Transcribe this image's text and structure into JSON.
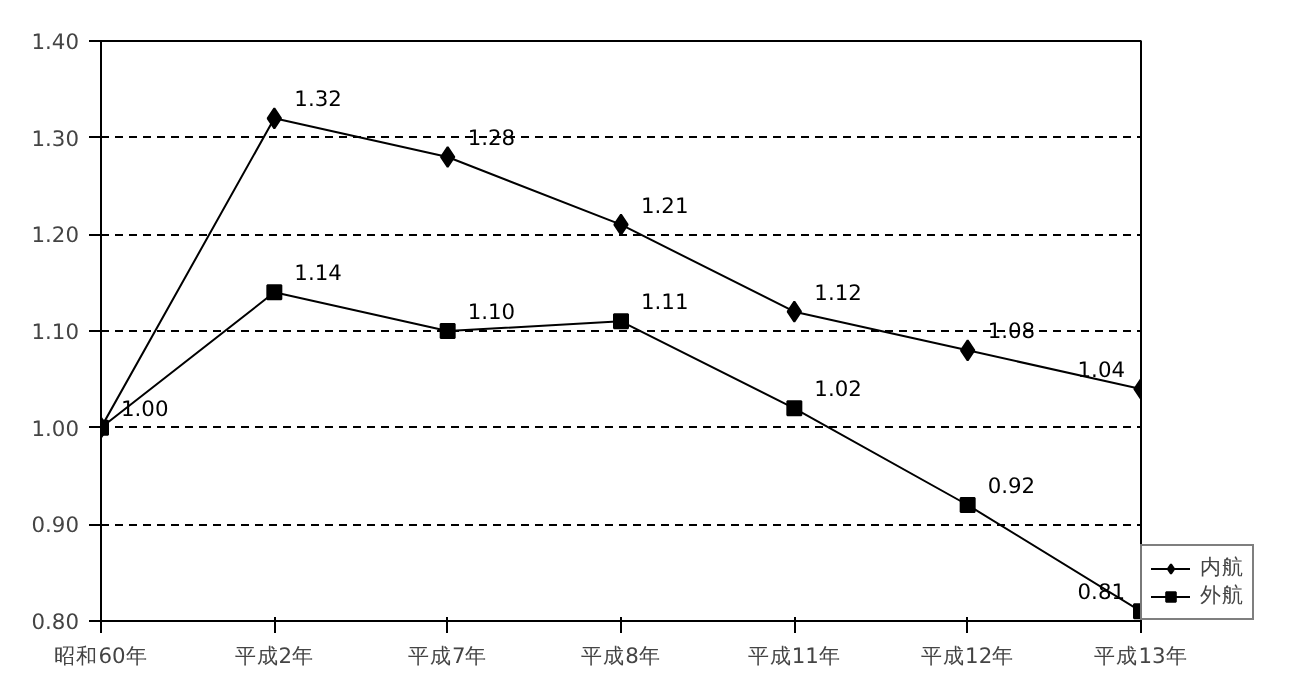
{
  "chart_data": {
    "type": "line",
    "categories": [
      "昭和60年",
      "平成2年",
      "平成7年",
      "平成8年",
      "平成11年",
      "平成12年",
      "平成13年"
    ],
    "series": [
      {
        "name": "内航",
        "color": "#000000",
        "marker": "diamond",
        "values": [
          1.0,
          1.32,
          1.28,
          1.21,
          1.12,
          1.08,
          1.04
        ],
        "value_labels": [
          null,
          "1.32",
          "1.28",
          "1.21",
          "1.12",
          "1.08",
          "1.04"
        ]
      },
      {
        "name": "外航",
        "color": "#000000",
        "marker": "square",
        "values": [
          1.0,
          1.14,
          1.1,
          1.11,
          1.02,
          0.92,
          0.81
        ],
        "value_labels": [
          "1.00",
          "1.14",
          "1.10",
          "1.11",
          "1.02",
          "0.92",
          "0.81"
        ]
      }
    ],
    "ylim": [
      0.8,
      1.4
    ],
    "yticks": [
      {
        "value": 0.8,
        "label": "0.80"
      },
      {
        "value": 0.9,
        "label": "0.90"
      },
      {
        "value": 1.0,
        "label": "1.00"
      },
      {
        "value": 1.1,
        "label": "1.10"
      },
      {
        "value": 1.2,
        "label": "1.20"
      },
      {
        "value": 1.3,
        "label": "1.30"
      },
      {
        "value": 1.4,
        "label": "1.40"
      }
    ],
    "grid": "y",
    "legend": "bottom right",
    "line_style": "solid"
  }
}
